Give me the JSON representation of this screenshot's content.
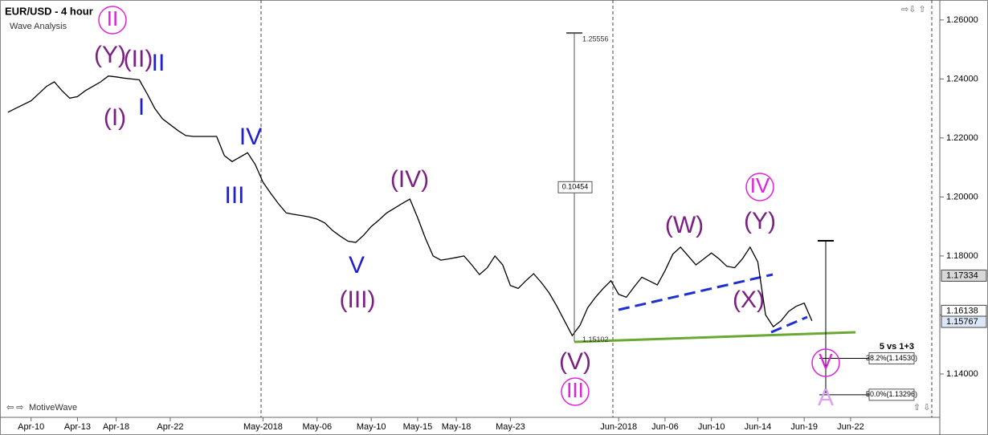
{
  "chart_data": {
    "type": "line",
    "title": "EUR/USD - 4 hour",
    "subtitle": "Wave Analysis",
    "brand": "MotiveWave",
    "color": "#000000",
    "categories": [
      null,
      null,
      null,
      "Apr-10",
      null,
      null,
      null,
      null,
      null,
      "Apr-13",
      null,
      null,
      null,
      null,
      "Apr-18",
      null,
      null,
      null,
      null,
      null,
      null,
      "Apr-22",
      null,
      null,
      null,
      null,
      null,
      null,
      null,
      null,
      null,
      null,
      null,
      "May-2018",
      null,
      null,
      null,
      null,
      null,
      null,
      "May-06",
      null,
      null,
      null,
      null,
      null,
      null,
      "May-10",
      null,
      null,
      null,
      null,
      null,
      "May-15",
      null,
      null,
      null,
      null,
      "May-18",
      null,
      null,
      null,
      null,
      null,
      null,
      "May-23",
      null,
      null,
      null,
      null,
      null,
      null,
      null,
      null,
      null,
      null,
      null,
      null,
      null,
      "Jun-2018",
      null,
      null,
      null,
      null,
      null,
      "Jun-06",
      null,
      null,
      null,
      null,
      null,
      "Jun-10",
      null,
      null,
      null,
      null,
      null,
      "Jun-14",
      null,
      null,
      null,
      null,
      null,
      "Jun-19",
      null,
      null,
      null,
      null,
      null,
      "Jun-22",
      null,
      null,
      null,
      null,
      null,
      null,
      null,
      null,
      null,
      null
    ],
    "values": [
      1.2287,
      1.23,
      1.2313,
      1.2326,
      1.235,
      1.2375,
      1.239,
      1.236,
      1.2335,
      1.234,
      1.236,
      1.2375,
      1.239,
      1.241,
      1.2407,
      1.2403,
      1.24,
      1.2397,
      1.235,
      1.23,
      1.2265,
      1.2245,
      1.2225,
      1.2208,
      1.2205,
      1.2205,
      1.2205,
      1.2205,
      1.214,
      1.212,
      1.2135,
      1.215,
      1.211,
      1.205,
      1.2012,
      1.1977,
      1.1946,
      1.1941,
      1.1937,
      1.1932,
      1.1925,
      1.1912,
      1.1886,
      1.1867,
      1.185,
      1.1846,
      1.187,
      1.19,
      1.1922,
      1.1946,
      1.1962,
      1.1978,
      1.1993,
      1.193,
      1.186,
      1.18,
      1.1786,
      1.179,
      1.1795,
      1.18,
      1.177,
      1.1737,
      1.176,
      1.18,
      1.177,
      1.17,
      1.169,
      1.1716,
      1.174,
      1.171,
      1.1675,
      1.163,
      1.158,
      1.153,
      1.1565,
      1.1625,
      1.166,
      1.169,
      1.1716,
      1.167,
      1.166,
      1.1695,
      1.1728,
      1.1715,
      1.1702,
      1.175,
      1.1806,
      1.183,
      1.18,
      1.177,
      1.179,
      1.181,
      1.179,
      1.1765,
      1.176,
      1.179,
      1.183,
      1.178,
      1.16,
      1.156,
      1.158,
      1.1612,
      1.163,
      1.164,
      1.158,
      null,
      null,
      null,
      null,
      null,
      null,
      null,
      null,
      null,
      null,
      null,
      null,
      null,
      null,
      null
    ],
    "ylim": [
      1.1253,
      1.2654
    ],
    "yticks": [
      {
        "value": 1.14,
        "label": "1.14000"
      },
      {
        "value": 1.16,
        "label": "1.16000"
      },
      {
        "value": 1.18,
        "label": "1.18000"
      },
      {
        "value": 1.2,
        "label": "1.20000"
      },
      {
        "value": 1.22,
        "label": "1.22000"
      },
      {
        "value": 1.24,
        "label": "1.24000"
      },
      {
        "value": 1.26,
        "label": "1.26000"
      }
    ],
    "price_labels": [
      1.17334,
      1.16138,
      1.15767
    ],
    "measure": {
      "high": 1.25556,
      "low": 1.15102,
      "range": 0.10454
    },
    "fib_title": "5 vs 1+3",
    "fib_levels": [
      {
        "value": 1.1453,
        "label": "38.2%(1.14530)"
      },
      {
        "value": 1.13296,
        "label": "50.0%(1.13296)"
      }
    ],
    "waves": [
      {
        "text": "II",
        "color": "#e020e0"
      },
      {
        "text": "(Y)",
        "color": "#7b1f82"
      },
      {
        "text": "(II)",
        "color": "#7b1f82"
      },
      {
        "text": "II",
        "color": "#1f1fd0"
      },
      {
        "text": "(I)",
        "color": "#7b1f82"
      },
      {
        "text": "I",
        "color": "#1f1fd0"
      },
      {
        "text": "IV",
        "color": "#1f1fd0"
      },
      {
        "text": "III",
        "color": "#1f1fd0"
      },
      {
        "text": "(IV)",
        "color": "#7b1f82"
      },
      {
        "text": "V",
        "color": "#1f1fd0"
      },
      {
        "text": "(III)",
        "color": "#7b1f82"
      },
      {
        "text": "(V)",
        "color": "#7b1f82"
      },
      {
        "text": "III",
        "color": "#e020e0"
      },
      {
        "text": "(W)",
        "color": "#7b1f82"
      },
      {
        "text": "IV",
        "color": "#e020e0"
      },
      {
        "text": "(Y)",
        "color": "#7b1f82"
      },
      {
        "text": "(X)",
        "color": "#7b1f82"
      },
      {
        "text": "V",
        "color": "#e020e0"
      },
      {
        "text": "A",
        "color": "#e0a0f0"
      }
    ]
  }
}
